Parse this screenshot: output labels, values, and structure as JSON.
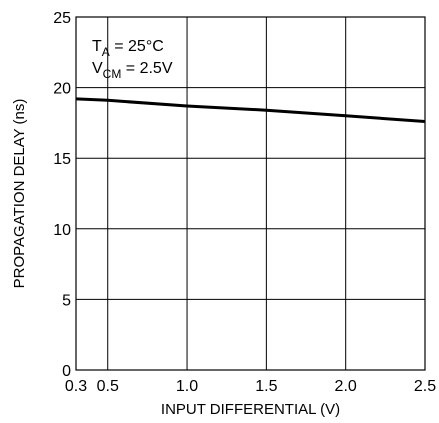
{
  "chart_data": {
    "type": "line",
    "xlabel": "INPUT DIFFERENTIAL (V)",
    "ylabel": "PROPAGATION DELAY (ns)",
    "xlim": [
      0.3,
      2.5
    ],
    "ylim": [
      0,
      25
    ],
    "x_ticks": [
      0.3,
      0.5,
      1.0,
      1.5,
      2.0,
      2.5
    ],
    "x_tick_labels": [
      "0.3",
      "0.5",
      "1.0",
      "1.5",
      "2.0",
      "2.5"
    ],
    "y_ticks": [
      0,
      5,
      10,
      15,
      20,
      25
    ],
    "y_tick_labels": [
      "0",
      "5",
      "10",
      "15",
      "20",
      "25"
    ],
    "grid": true,
    "annotations": {
      "ta": {
        "main": "T",
        "sub": "A",
        "rest": " = 25°C"
      },
      "vcm": {
        "main": "V",
        "sub": "CM",
        "rest": " = 2.5V"
      }
    },
    "series": [
      {
        "x": [
          0.3,
          0.5,
          1.0,
          1.5,
          2.0,
          2.5
        ],
        "y": [
          19.2,
          19.1,
          18.7,
          18.4,
          18.0,
          17.6
        ]
      }
    ]
  }
}
